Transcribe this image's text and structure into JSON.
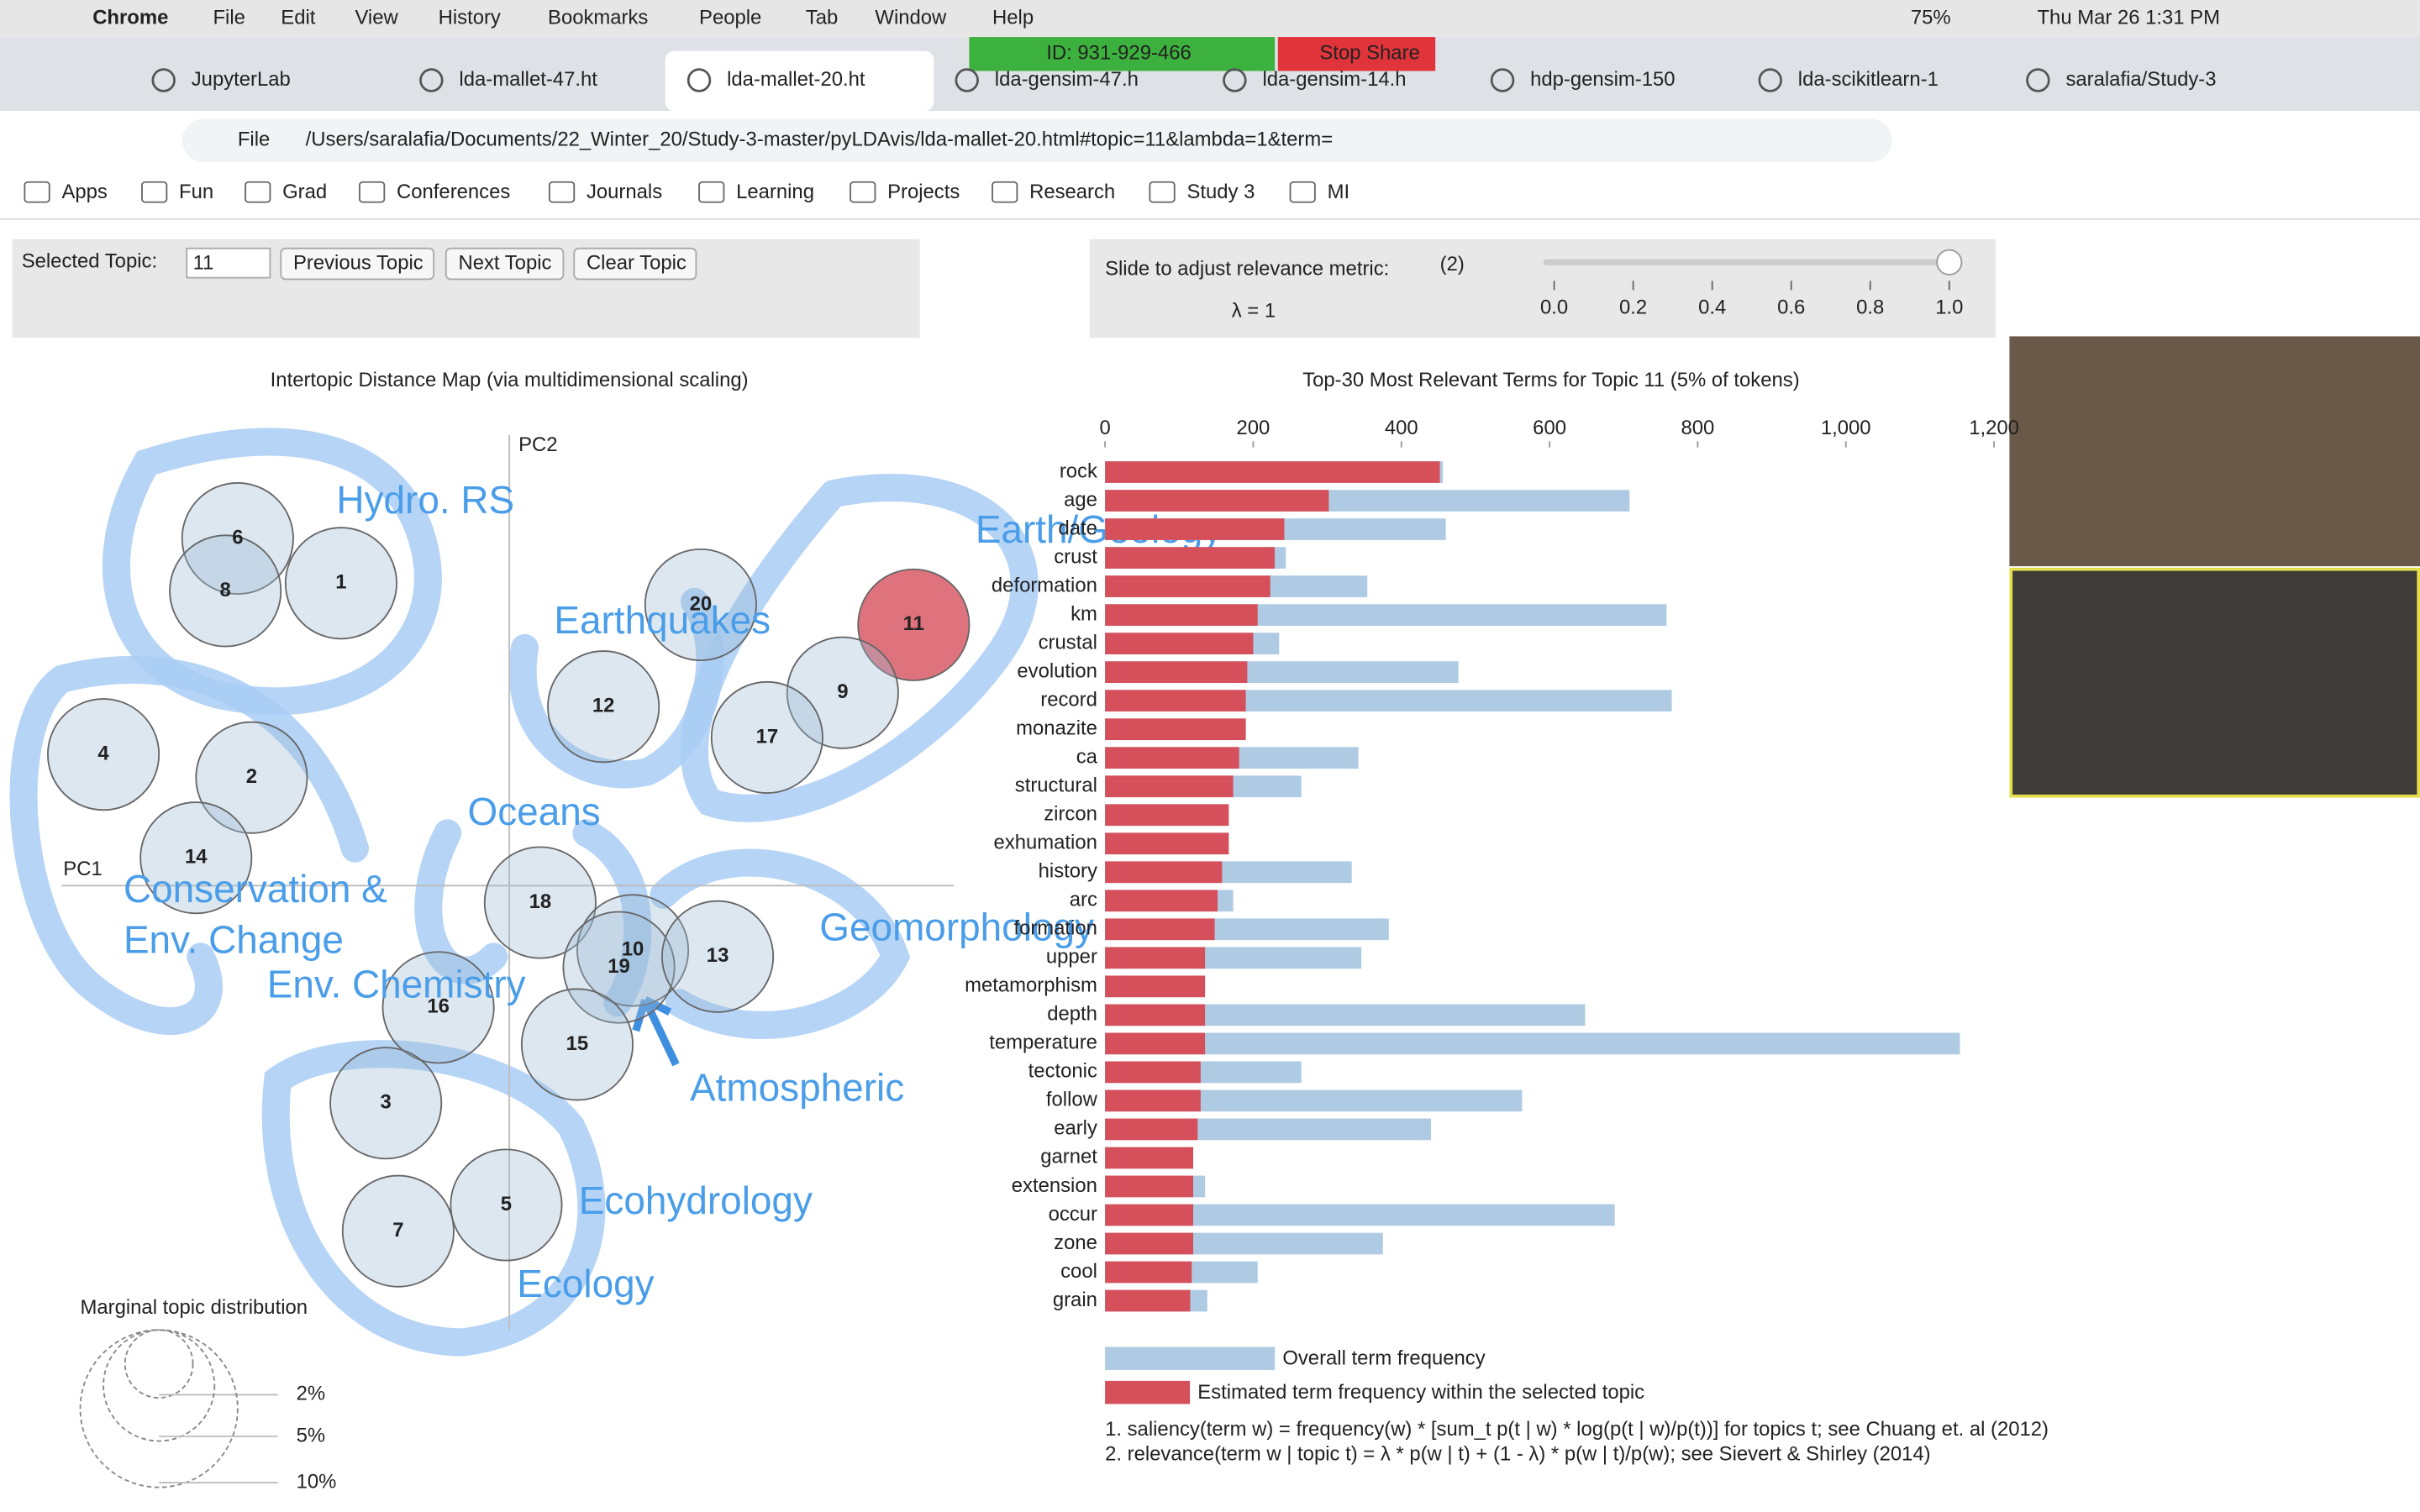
{
  "menu_bar": {
    "app": "Chrome",
    "items": [
      "File",
      "Edit",
      "View",
      "History",
      "Bookmarks",
      "People",
      "Tab",
      "Window",
      "Help"
    ],
    "battery": "75%",
    "clock": "Thu Mar 26  1:31 PM"
  },
  "share_bar": {
    "meeting_id": "ID: 931-929-466",
    "stop_button": "Stop Share"
  },
  "tabs": [
    "JupyterLab",
    "lda-mallet-47.ht",
    "lda-mallet-20.ht",
    "lda-gensim-47.h",
    "lda-gensim-14.h",
    "hdp-gensim-150",
    "lda-scikitlearn-1",
    "saralafia/Study-3"
  ],
  "address_bar": {
    "scheme": "File",
    "url": "/Users/saralafia/Documents/22_Winter_20/Study-3-master/pyLDAvis/lda-mallet-20.html#topic=11&lambda=1&term="
  },
  "bookmarks": [
    "Apps",
    "Fun",
    "Grad",
    "Conferences",
    "Journals",
    "Learning",
    "Projects",
    "Research",
    "Study 3",
    "MI"
  ],
  "controls": {
    "topic_label": "Selected Topic:",
    "topic_value": "11",
    "buttons": [
      "Previous Topic",
      "Next Topic",
      "Clear Topic"
    ],
    "slider_label": "Slide to adjust relevance metric:",
    "slider_note": "(2)",
    "lambda": "λ = 1",
    "slider_ticks": [
      "0.0",
      "0.2",
      "0.4",
      "0.6",
      "0.8",
      "1.0"
    ]
  },
  "topic_map": {
    "title": "Intertopic Distance Map (via multidimensional scaling)",
    "x_axis": "PC1",
    "y_axis": "PC2",
    "topics": [
      "6",
      "8",
      "1",
      "20",
      "11",
      "12",
      "9",
      "17",
      "4",
      "2",
      "14",
      "18",
      "10",
      "19",
      "13",
      "16",
      "15",
      "3",
      "7",
      "5"
    ],
    "annotations": [
      "Hydro. RS",
      "Earth/Geology",
      "Earthquakes",
      "Oceans",
      "Conservation &",
      "Env. Change",
      "Env. Chemistry",
      "Geomorphology",
      "Atmospheric",
      "Ecohydrology",
      "Ecology"
    ],
    "legend": {
      "title": "Marginal topic distribution",
      "sizes": [
        "2%",
        "5%",
        "10%"
      ]
    }
  },
  "chart_data": {
    "type": "bar",
    "orientation": "horizontal",
    "title": "Top-30 Most Relevant Terms for Topic 11 (5% of tokens)",
    "categories": [
      "rock",
      "age",
      "date",
      "crust",
      "deformation",
      "km",
      "crustal",
      "evolution",
      "record",
      "monazite",
      "ca",
      "structural",
      "zircon",
      "exhumation",
      "history",
      "arc",
      "formation",
      "upper",
      "metamorphism",
      "depth",
      "temperature",
      "tectonic",
      "follow",
      "early",
      "garnet",
      "extension",
      "occur",
      "zone",
      "cool",
      "grain"
    ],
    "series": [
      {
        "name": "Overall term frequency",
        "color": "#aecbe3",
        "values": [
          456,
          708,
          460,
          244,
          354,
          758,
          235,
          477,
          765,
          190,
          342,
          265,
          167,
          167,
          333,
          173,
          383,
          346,
          135,
          648,
          1154,
          265,
          563,
          440,
          119,
          135,
          688,
          375,
          206,
          138
        ]
      },
      {
        "name": "Estimated term frequency within the selected topic",
        "color": "#d6505c",
        "values": [
          452,
          302,
          242,
          229,
          223,
          206,
          200,
          192,
          190,
          190,
          181,
          173,
          167,
          167,
          158,
          152,
          148,
          135,
          135,
          135,
          135,
          129,
          129,
          125,
          119,
          119,
          119,
          119,
          117,
          115
        ]
      }
    ],
    "xlim": [
      0,
      1200
    ],
    "xticks": [
      0,
      200,
      400,
      600,
      800,
      {
        "value": 1000,
        "label": "1,000"
      },
      {
        "value": 1200,
        "label": "1,200"
      }
    ]
  },
  "footnotes": [
    "1. saliency(term w) = frequency(w) * [sum_t p(t | w) * log(p(t | w)/p(t))] for topics t; see Chuang et. al (2012)",
    "2. relevance(term w | topic t) = λ * p(w | t) + (1 - λ) * p(w | t)/p(w); see Sievert & Shirley (2014)"
  ]
}
